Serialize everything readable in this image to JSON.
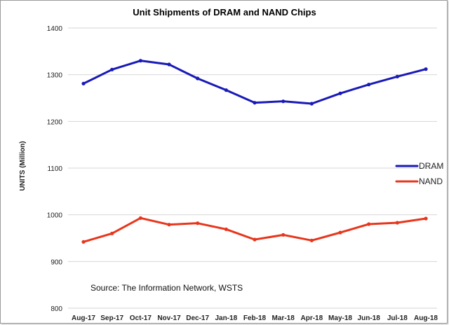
{
  "chart_data": {
    "type": "line",
    "title": "Unit Shipments of DRAM and NAND Chips",
    "ylabel": "UNITS (Million)",
    "xlabel": "",
    "categories": [
      "Aug-17",
      "Sep-17",
      "Oct-17",
      "Nov-17",
      "Dec-17",
      "Jan-18",
      "Feb-18",
      "Mar-18",
      "Apr-18",
      "May-18",
      "Jun-18",
      "Jul-18",
      "Aug-18"
    ],
    "ylim": [
      800,
      1400
    ],
    "yticks": [
      800,
      900,
      1000,
      1100,
      1200,
      1300,
      1400
    ],
    "grid": true,
    "legend_position": "right",
    "annotation": "Source: The Information Network, WSTS",
    "series": [
      {
        "name": "DRAM",
        "color": "#1a1ab8",
        "values": [
          1281,
          1311,
          1330,
          1322,
          1292,
          1267,
          1240,
          1243,
          1238,
          1260,
          1279,
          1296,
          1312
        ]
      },
      {
        "name": "NAND",
        "color": "#e8361c",
        "values": [
          942,
          960,
          993,
          979,
          982,
          969,
          947,
          957,
          945,
          962,
          980,
          983,
          992
        ]
      }
    ]
  }
}
